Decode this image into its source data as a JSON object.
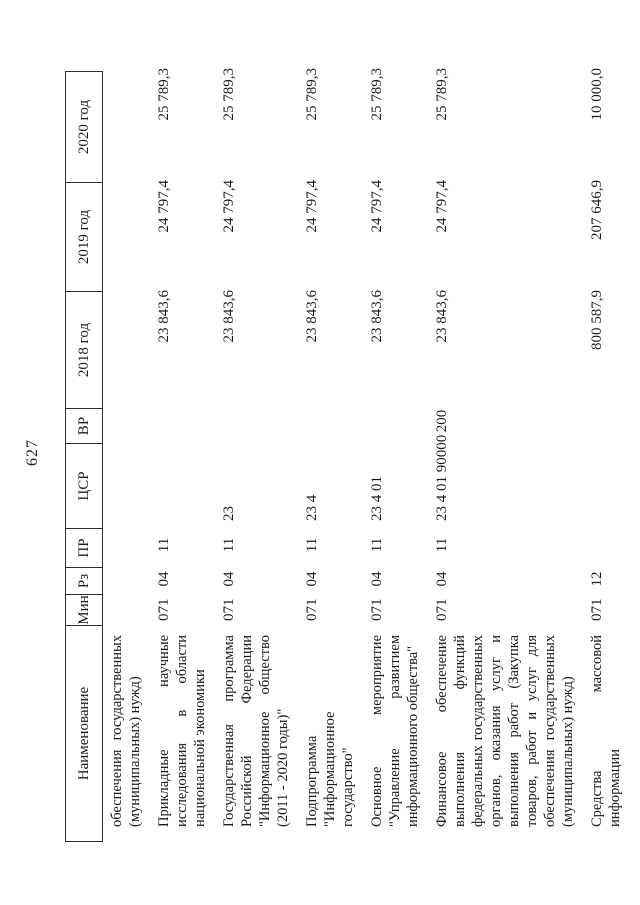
{
  "page": {
    "number": "627"
  },
  "table": {
    "headers": {
      "name": "Наименование",
      "min": "Мин",
      "rz": "Рз",
      "pr": "ПР",
      "csr": "ЦСР",
      "vr": "ВР",
      "y2018": "2018 год",
      "y2019": "2019 год",
      "y2020": "2020 год"
    },
    "rows": [
      {
        "name": "обеспечения государственных (муниципальных) нужд)",
        "min": "",
        "rz": "",
        "pr": "",
        "csr": "",
        "vr": "",
        "y2018": "",
        "y2019": "",
        "y2020": ""
      },
      {
        "name": "Прикладные научные исследования в области национальной экономики",
        "min": "071",
        "rz": "04",
        "pr": "11",
        "csr": "",
        "vr": "",
        "y2018": "23 843,6",
        "y2019": "24 797,4",
        "y2020": "25 789,3"
      },
      {
        "name": "Государственная программа Российской Федерации \"Информационное общество (2011 - 2020 годы)\"",
        "min": "071",
        "rz": "04",
        "pr": "11",
        "csr": "23",
        "vr": "",
        "y2018": "23 843,6",
        "y2019": "24 797,4",
        "y2020": "25 789,3"
      },
      {
        "name": "Подпрограмма \"Информационное государство\"",
        "min": "071",
        "rz": "04",
        "pr": "11",
        "csr": "23 4",
        "vr": "",
        "y2018": "23 843,6",
        "y2019": "24 797,4",
        "y2020": "25 789,3"
      },
      {
        "name": "Основное мероприятие \"Управление развитием информационного общества\"",
        "min": "071",
        "rz": "04",
        "pr": "11",
        "csr": "23 4 01",
        "vr": "",
        "y2018": "23 843,6",
        "y2019": "24 797,4",
        "y2020": "25 789,3"
      },
      {
        "name": "Финансовое обеспечение выполнения функций федеральных государственных органов, оказания услуг и выполнения работ (Закупка товаров, работ и услуг для обеспечения государственных (муниципальных) нужд)",
        "min": "071",
        "rz": "04",
        "pr": "11",
        "csr": "23 4 01 90000",
        "vr": "200",
        "y2018": "23 843,6",
        "y2019": "24 797,4",
        "y2020": "25 789,3"
      },
      {
        "name": "Средства массовой информации",
        "min": "071",
        "rz": "12",
        "pr": "",
        "csr": "",
        "vr": "",
        "y2018": "800 587,9",
        "y2019": "207 646,9",
        "y2020": "10 000,0"
      }
    ]
  }
}
